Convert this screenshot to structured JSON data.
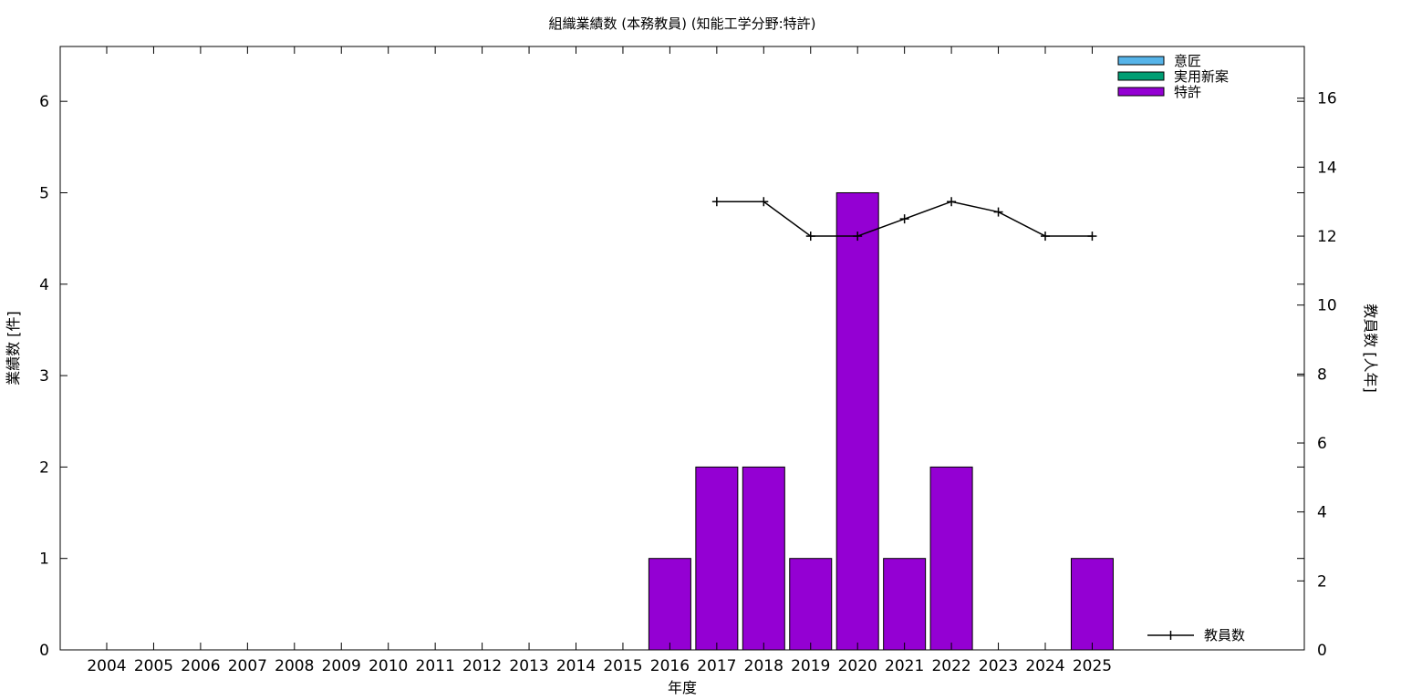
{
  "chart_data": {
    "type": "bar",
    "title": "組織業績数 (本務教員) (知能工学分野:特許)",
    "xlabel": "年度",
    "ylabel": "業績数 [件]",
    "y2label": "教員数 [人年]",
    "categories": [
      "2004",
      "2005",
      "2006",
      "2007",
      "2008",
      "2009",
      "2010",
      "2011",
      "2012",
      "2013",
      "2014",
      "2015",
      "2016",
      "2017",
      "2018",
      "2019",
      "2020",
      "2021",
      "2022",
      "2023",
      "2024",
      "2025"
    ],
    "ylim": [
      0,
      6.6
    ],
    "yticks": [
      0,
      1,
      2,
      3,
      4,
      5,
      6
    ],
    "y2lim": [
      0,
      17.5
    ],
    "y2ticks": [
      0,
      2,
      4,
      6,
      8,
      10,
      12,
      14,
      16
    ],
    "grid": false,
    "series": [
      {
        "name": "意匠",
        "kind": "bar",
        "color": "#56b4e9",
        "values": [
          0,
          0,
          0,
          0,
          0,
          0,
          0,
          0,
          0,
          0,
          0,
          0,
          0,
          0,
          0,
          0,
          0,
          0,
          0,
          0,
          0,
          0
        ]
      },
      {
        "name": "実用新案",
        "kind": "bar",
        "color": "#009e73",
        "values": [
          0,
          0,
          0,
          0,
          0,
          0,
          0,
          0,
          0,
          0,
          0,
          0,
          0,
          0,
          0,
          0,
          0,
          0,
          0,
          0,
          0,
          0
        ]
      },
      {
        "name": "特許",
        "kind": "bar",
        "color": "#9400d3",
        "values": [
          0,
          0,
          0,
          0,
          0,
          0,
          0,
          0,
          0,
          0,
          0,
          0,
          1,
          2,
          2,
          1,
          5,
          1,
          2,
          0,
          0,
          1
        ]
      },
      {
        "name": "教員数",
        "kind": "line",
        "axis": "y2",
        "color": "#000000",
        "values": [
          null,
          null,
          null,
          null,
          null,
          null,
          null,
          null,
          null,
          null,
          null,
          null,
          null,
          13,
          13,
          12,
          12,
          12.5,
          13,
          12.7,
          12,
          12
        ]
      }
    ],
    "legend_position": "top-right"
  }
}
